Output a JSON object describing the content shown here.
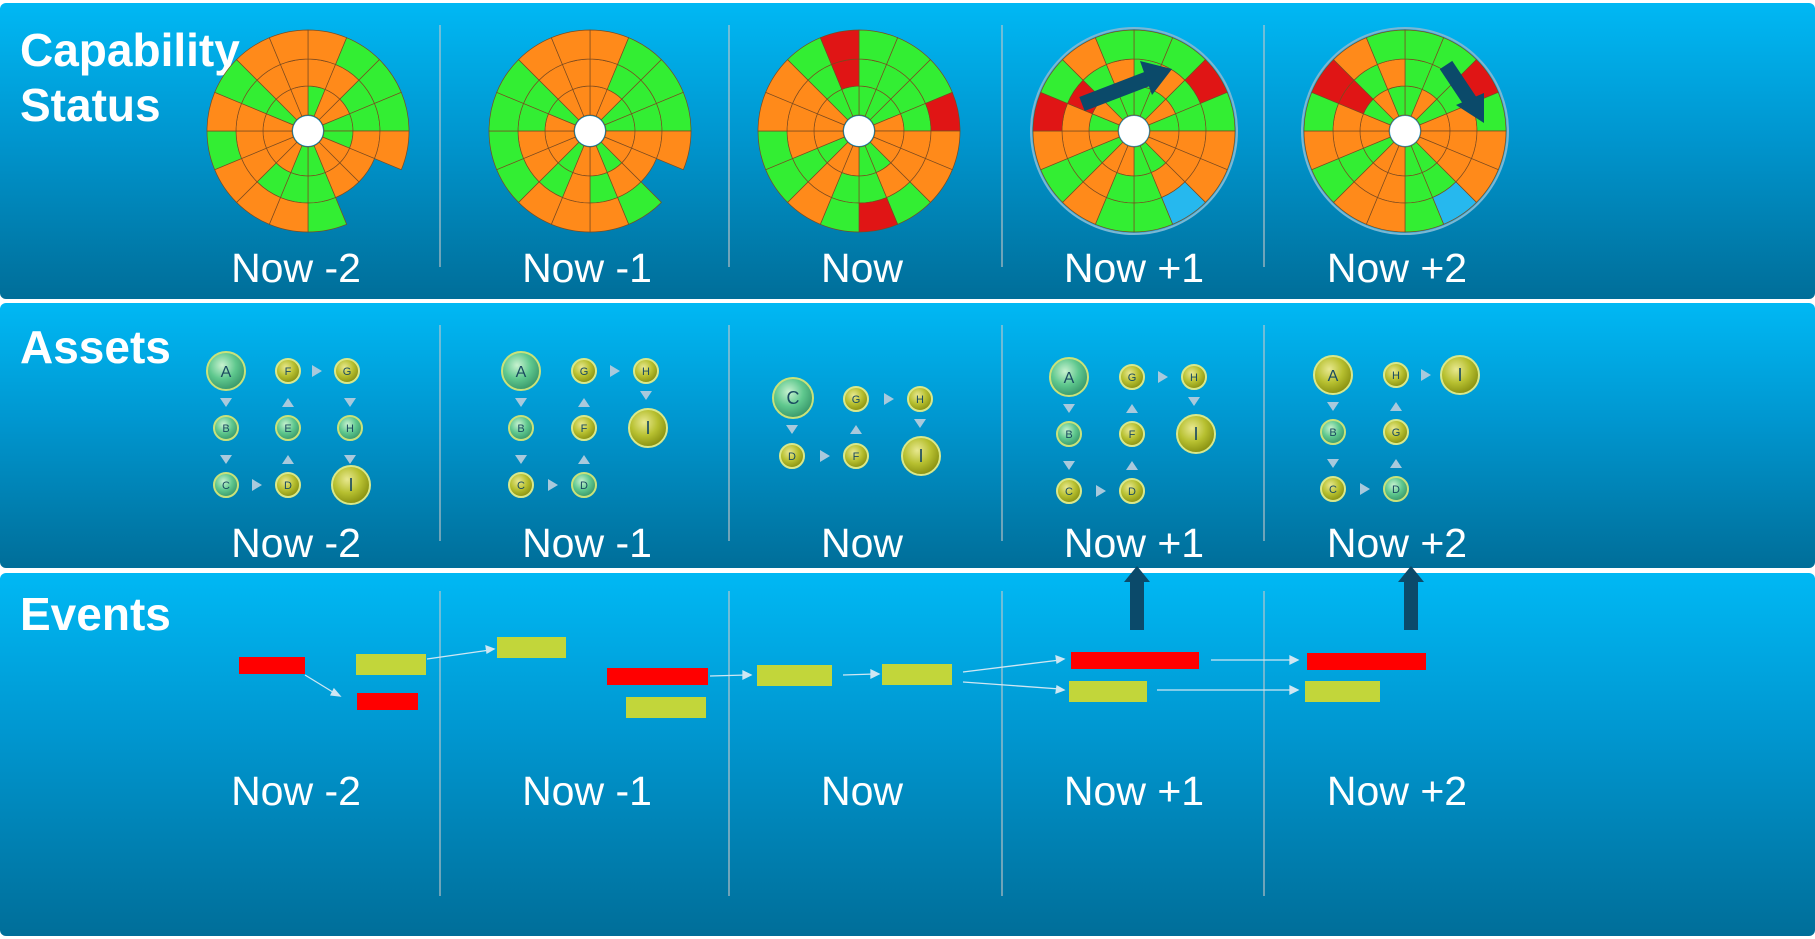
{
  "panels": [
    {
      "title_line1": "Capability",
      "title_line2": "Status",
      "labels": [
        "Now -2",
        "Now -1",
        "Now",
        "Now +1",
        "Now +2"
      ]
    },
    {
      "title_line1": "Assets",
      "title_line2": "",
      "labels": [
        "Now -2",
        "Now -1",
        "Now",
        "Now +1",
        "Now +2"
      ]
    },
    {
      "title_line1": "Events",
      "title_line2": "",
      "labels": [
        "Now -2",
        "Now -1",
        "Now",
        "Now +1",
        "Now +2"
      ]
    }
  ],
  "assets": {
    "now_m2": {
      "A": "A",
      "B": "B",
      "C": "C",
      "D": "D",
      "E": "E",
      "F": "F",
      "G": "G",
      "H": "H",
      "I": "I"
    },
    "now_m1": {
      "A": "A",
      "B": "B",
      "C": "C",
      "D": "D",
      "F": "F",
      "G": "G",
      "H": "H",
      "I": "I"
    },
    "now": {
      "C": "C",
      "D": "D",
      "F": "F",
      "G": "G",
      "H": "H",
      "I": "I"
    },
    "now_p1": {
      "A": "A",
      "B": "B",
      "C": "C",
      "D": "D",
      "F": "F",
      "G": "G",
      "H": "H",
      "I": "I"
    },
    "now_p2": {
      "A": "A",
      "B": "B",
      "C": "C",
      "D": "D",
      "G": "G",
      "H": "H",
      "I": "I"
    }
  },
  "colors": {
    "status_good": "#33ee33",
    "status_partial": "#ff8a1a",
    "status_bad": "#e01515",
    "status_unknown": "#26b8ee",
    "event_red": "#ff0000",
    "event_yellow": "#c2d63a",
    "arrow": "#0b4a6a"
  }
}
